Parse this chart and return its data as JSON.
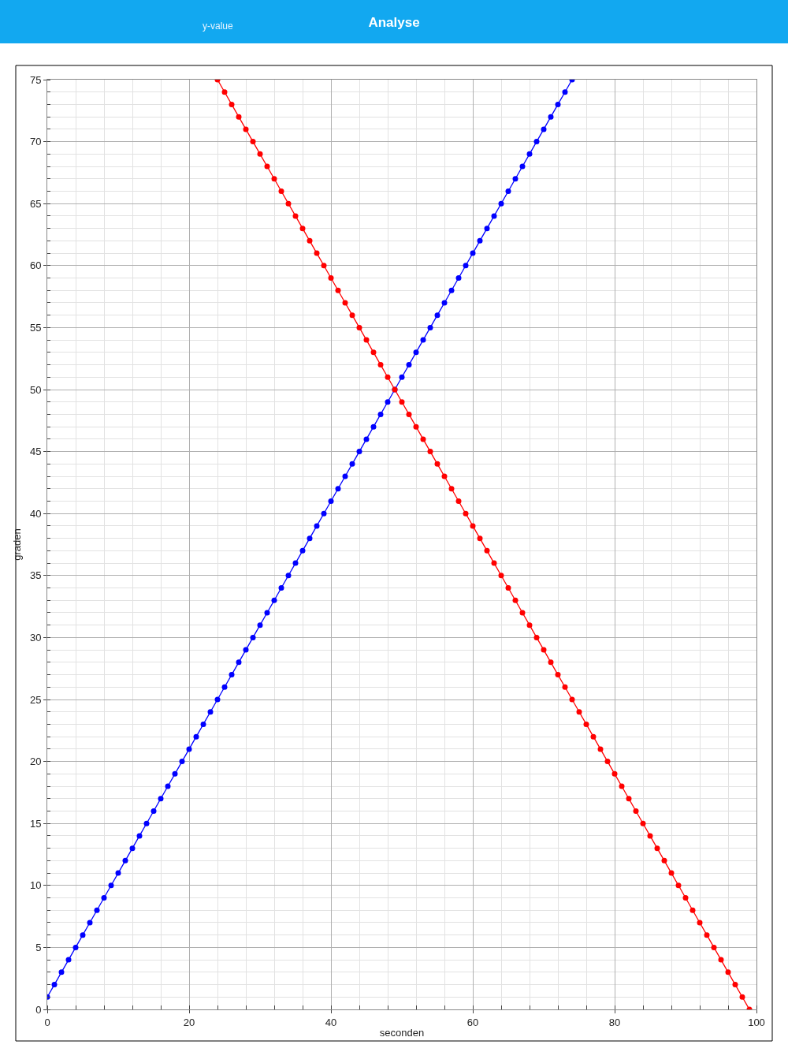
{
  "chart_data": {
    "type": "line",
    "title": "Analyse",
    "annotations": [
      "y-value"
    ],
    "xlabel": "seconden",
    "ylabel": "graden",
    "xlim": [
      0,
      100
    ],
    "ylim": [
      0,
      75
    ],
    "xticks": [
      0,
      20,
      40,
      60,
      80,
      100
    ],
    "yticks": [
      0,
      5,
      10,
      15,
      20,
      25,
      30,
      35,
      40,
      45,
      50,
      55,
      60,
      65,
      70,
      75
    ],
    "grid": true,
    "marker": "circle",
    "line_style": "solid",
    "series": [
      {
        "color": "#0000ff",
        "x": [
          0,
          1,
          2,
          3,
          4,
          5,
          6,
          7,
          8,
          9,
          10,
          11,
          12,
          13,
          14,
          15,
          16,
          17,
          18,
          19,
          20,
          21,
          22,
          23,
          24,
          25,
          26,
          27,
          28,
          29,
          30,
          31,
          32,
          33,
          34,
          35,
          36,
          37,
          38,
          39,
          40,
          41,
          42,
          43,
          44,
          45,
          46,
          47,
          48,
          49,
          50,
          51,
          52,
          53,
          54,
          55,
          56,
          57,
          58,
          59,
          60,
          61,
          62,
          63,
          64,
          65,
          66,
          67,
          68,
          69,
          70,
          71,
          72,
          73,
          74
        ],
        "values": [
          1,
          2,
          3,
          4,
          5,
          6,
          7,
          8,
          9,
          10,
          11,
          12,
          13,
          14,
          15,
          16,
          17,
          18,
          19,
          20,
          21,
          22,
          23,
          24,
          25,
          26,
          27,
          28,
          29,
          30,
          31,
          32,
          33,
          34,
          35,
          36,
          37,
          38,
          39,
          40,
          41,
          42,
          43,
          44,
          45,
          46,
          47,
          48,
          49,
          50,
          51,
          52,
          53,
          54,
          55,
          56,
          57,
          58,
          59,
          60,
          61,
          62,
          63,
          64,
          65,
          66,
          67,
          68,
          69,
          70,
          71,
          72,
          73,
          74,
          75
        ]
      },
      {
        "color": "#ff0000",
        "x": [
          24,
          25,
          26,
          27,
          28,
          29,
          30,
          31,
          32,
          33,
          34,
          35,
          36,
          37,
          38,
          39,
          40,
          41,
          42,
          43,
          44,
          45,
          46,
          47,
          48,
          49,
          50,
          51,
          52,
          53,
          54,
          55,
          56,
          57,
          58,
          59,
          60,
          61,
          62,
          63,
          64,
          65,
          66,
          67,
          68,
          69,
          70,
          71,
          72,
          73,
          74,
          75,
          76,
          77,
          78,
          79,
          80,
          81,
          82,
          83,
          84,
          85,
          86,
          87,
          88,
          89,
          90,
          91,
          92,
          93,
          94,
          95,
          96,
          97,
          98,
          99
        ],
        "values": [
          75,
          74,
          73,
          72,
          71,
          70,
          69,
          68,
          67,
          66,
          65,
          64,
          63,
          62,
          61,
          60,
          59,
          58,
          57,
          56,
          55,
          54,
          53,
          52,
          51,
          50,
          49,
          48,
          47,
          46,
          45,
          44,
          43,
          42,
          41,
          40,
          39,
          38,
          37,
          36,
          35,
          34,
          33,
          32,
          31,
          30,
          29,
          28,
          27,
          26,
          25,
          24,
          23,
          22,
          21,
          20,
          19,
          18,
          17,
          16,
          15,
          14,
          13,
          12,
          11,
          10,
          9,
          8,
          7,
          6,
          5,
          4,
          3,
          2,
          1,
          0
        ]
      }
    ]
  }
}
